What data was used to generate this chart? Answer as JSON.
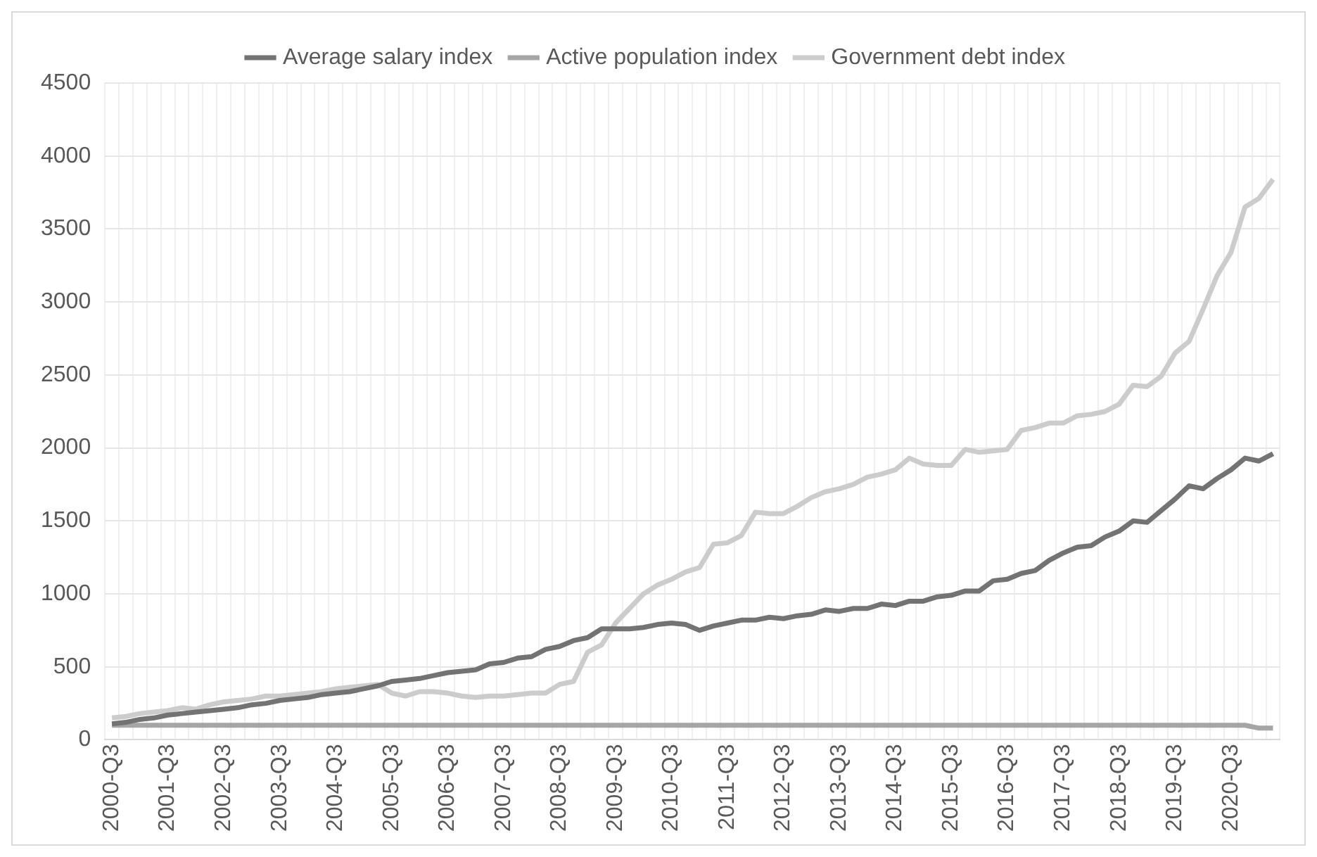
{
  "chart_data": {
    "type": "line",
    "categories": [
      "2000-Q3",
      null,
      null,
      null,
      "2001-Q3",
      null,
      null,
      null,
      "2002-Q3",
      null,
      null,
      null,
      "2003-Q3",
      null,
      null,
      null,
      "2004-Q3",
      null,
      null,
      null,
      "2005-Q3",
      null,
      null,
      null,
      "2006-Q3",
      null,
      null,
      null,
      "2007-Q3",
      null,
      null,
      null,
      "2008-Q3",
      null,
      null,
      null,
      "2009-Q3",
      null,
      null,
      null,
      "2010-Q3",
      null,
      null,
      null,
      "2011-Q3",
      null,
      null,
      null,
      "2012-Q3",
      null,
      null,
      null,
      "2013-Q3",
      null,
      null,
      null,
      "2014-Q3",
      null,
      null,
      null,
      "2015-Q3",
      null,
      null,
      null,
      "2016-Q3",
      null,
      null,
      null,
      "2017-Q3",
      null,
      null,
      null,
      "2018-Q3",
      null,
      null,
      null,
      "2019-Q3",
      null,
      null,
      null,
      "2020-Q3",
      null,
      null,
      null
    ],
    "series": [
      {
        "name": "Average salary index",
        "color": "#737373",
        "values": [
          110,
          120,
          140,
          150,
          170,
          180,
          190,
          200,
          210,
          220,
          240,
          250,
          270,
          280,
          290,
          310,
          320,
          330,
          350,
          370,
          400,
          410,
          420,
          440,
          460,
          470,
          480,
          520,
          530,
          560,
          570,
          620,
          640,
          680,
          700,
          760,
          760,
          760,
          770,
          790,
          800,
          790,
          750,
          780,
          800,
          820,
          820,
          840,
          830,
          850,
          860,
          890,
          880,
          900,
          900,
          930,
          920,
          950,
          950,
          980,
          990,
          1020,
          1020,
          1090,
          1100,
          1140,
          1160,
          1230,
          1280,
          1320,
          1330,
          1390,
          1430,
          1500,
          1490,
          1570,
          1650,
          1740,
          1720,
          1790,
          1850,
          1930,
          1910,
          1960
        ]
      },
      {
        "name": "Active population index",
        "color": "#a5a5a5",
        "values": [
          100,
          100,
          100,
          100,
          100,
          100,
          100,
          100,
          100,
          100,
          100,
          100,
          100,
          100,
          100,
          100,
          100,
          100,
          100,
          100,
          100,
          100,
          100,
          100,
          100,
          100,
          100,
          100,
          100,
          100,
          100,
          100,
          100,
          100,
          100,
          100,
          100,
          100,
          100,
          100,
          100,
          100,
          100,
          100,
          100,
          100,
          100,
          100,
          100,
          100,
          100,
          100,
          100,
          100,
          100,
          100,
          100,
          100,
          100,
          100,
          100,
          100,
          100,
          100,
          100,
          100,
          100,
          100,
          100,
          100,
          100,
          100,
          100,
          100,
          100,
          100,
          100,
          100,
          100,
          100,
          100,
          100,
          80,
          80
        ]
      },
      {
        "name": "Government debt index",
        "color": "#cccccc",
        "values": [
          150,
          160,
          180,
          190,
          200,
          220,
          210,
          240,
          260,
          270,
          280,
          300,
          300,
          310,
          320,
          330,
          350,
          360,
          370,
          380,
          320,
          300,
          330,
          330,
          320,
          300,
          290,
          300,
          300,
          310,
          320,
          320,
          380,
          400,
          600,
          650,
          800,
          900,
          1000,
          1060,
          1100,
          1150,
          1180,
          1340,
          1350,
          1400,
          1560,
          1550,
          1550,
          1600,
          1660,
          1700,
          1720,
          1750,
          1800,
          1820,
          1850,
          1930,
          1890,
          1880,
          1880,
          1990,
          1970,
          1980,
          1990,
          2120,
          2140,
          2170,
          2170,
          2220,
          2230,
          2250,
          2300,
          2430,
          2420,
          2490,
          2650,
          2730,
          2950,
          3180,
          3340,
          3650,
          3710,
          3840
        ]
      }
    ],
    "ylim": [
      0,
      4500
    ],
    "yticks": [
      0,
      500,
      1000,
      1500,
      2000,
      2500,
      3000,
      3500,
      4000,
      4500
    ],
    "grid": true,
    "legend": "top",
    "marker": "none",
    "line_style": "solid"
  }
}
